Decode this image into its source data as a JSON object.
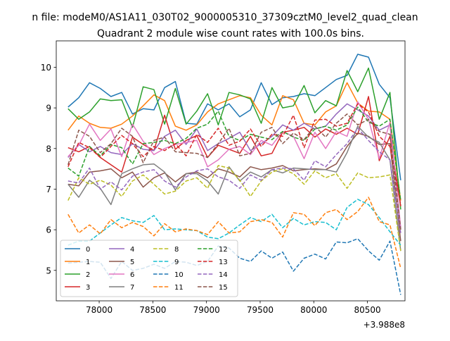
{
  "suptitle": "n file: modeM0/AS1A11_030T02_9000005310_37309cztM0_level2_quad_clean",
  "chart_data": {
    "type": "line",
    "title": "Quadrant 2 module wise count rates with 100.0s bins.",
    "xlabel": "",
    "ylabel": "",
    "offset_text": "+3.988e8",
    "x_offset": 398800000,
    "xlim": [
      77600,
      80850
    ],
    "ylim": [
      4.25,
      10.65
    ],
    "xticks": [
      78000,
      78500,
      79000,
      79500,
      80000,
      80500
    ],
    "yticks": [
      5,
      6,
      7,
      8,
      9,
      10
    ],
    "grid": false,
    "legend_position": "lower-left",
    "x": [
      77710,
      77810,
      77910,
      78010,
      78110,
      78210,
      78310,
      78410,
      78510,
      78610,
      78710,
      78810,
      78910,
      79010,
      79110,
      79210,
      79310,
      79410,
      79510,
      79610,
      79710,
      79810,
      79910,
      80010,
      80110,
      80210,
      80310,
      80410,
      80510,
      80610,
      80710,
      80810
    ],
    "series": [
      {
        "name": "0",
        "color": "#1f77b4",
        "dash": "solid",
        "values": [
          9.02,
          9.25,
          9.62,
          9.48,
          9.28,
          9.38,
          8.85,
          8.98,
          8.95,
          9.5,
          9.65,
          8.62,
          8.6,
          9.1,
          8.95,
          9.1,
          8.78,
          8.95,
          9.62,
          9.08,
          9.25,
          9.28,
          9.35,
          9.3,
          9.5,
          9.7,
          9.8,
          10.32,
          10.25,
          9.58,
          9.25,
          7.22
        ]
      },
      {
        "name": "1",
        "color": "#ff7f0e",
        "dash": "solid",
        "values": [
          8.45,
          8.8,
          8.62,
          8.52,
          8.5,
          8.6,
          8.8,
          9.05,
          9.32,
          9.18,
          8.55,
          8.45,
          8.58,
          8.9,
          9.1,
          9.2,
          9.3,
          9.25,
          8.82,
          8.58,
          9.3,
          9.2,
          8.62,
          8.58,
          8.9,
          9.05,
          9.62,
          9.12,
          8.92,
          8.9,
          8.72,
          6.72
        ]
      },
      {
        "name": "2",
        "color": "#2ca02c",
        "dash": "solid",
        "values": [
          8.98,
          8.72,
          8.9,
          9.22,
          9.18,
          9.2,
          8.52,
          9.52,
          9.45,
          8.6,
          9.48,
          8.6,
          8.92,
          9.35,
          8.58,
          9.38,
          9.32,
          9.22,
          8.62,
          9.5,
          9.0,
          9.05,
          9.55,
          8.88,
          9.18,
          9.05,
          9.92,
          9.4,
          9.98,
          8.72,
          9.38,
          6.5
        ]
      },
      {
        "name": "3",
        "color": "#d62728",
        "dash": "solid",
        "values": [
          8.02,
          7.92,
          8.05,
          7.78,
          7.6,
          7.42,
          8.28,
          8.1,
          7.95,
          8.82,
          7.98,
          8.2,
          8.32,
          7.78,
          8.08,
          7.98,
          7.88,
          8.3,
          7.82,
          7.88,
          8.4,
          8.45,
          8.52,
          8.28,
          8.48,
          8.35,
          8.5,
          8.35,
          9.28,
          7.7,
          8.3,
          6.58
        ]
      },
      {
        "name": "4",
        "color": "#9467bd",
        "dash": "solid",
        "values": [
          7.78,
          8.1,
          7.92,
          8.05,
          7.9,
          7.85,
          8.12,
          7.98,
          7.95,
          8.3,
          8.45,
          8.1,
          8.48,
          7.95,
          8.12,
          8.25,
          8.4,
          7.95,
          8.12,
          8.3,
          8.58,
          8.45,
          8.62,
          8.48,
          8.55,
          8.85,
          9.1,
          8.95,
          8.8,
          8.45,
          8.58,
          6.02
        ]
      },
      {
        "name": "5",
        "color": "#8c564b",
        "dash": "solid",
        "values": [
          7.12,
          7.08,
          7.42,
          7.45,
          7.5,
          7.28,
          7.42,
          7.05,
          7.28,
          7.4,
          7.18,
          7.38,
          7.42,
          7.28,
          7.5,
          7.42,
          7.3,
          7.55,
          7.48,
          7.52,
          7.58,
          7.45,
          7.48,
          7.5,
          7.48,
          7.62,
          8.05,
          8.38,
          8.3,
          8.1,
          8.12,
          5.72
        ]
      },
      {
        "name": "6",
        "color": "#e377c2",
        "dash": "solid",
        "values": [
          7.8,
          8.08,
          8.6,
          8.2,
          8.48,
          7.8,
          8.6,
          8.18,
          7.85,
          8.0,
          8.1,
          8.15,
          8.2,
          7.55,
          7.72,
          7.98,
          8.05,
          7.85,
          8.2,
          8.08,
          8.42,
          8.3,
          7.75,
          8.4,
          8.0,
          8.42,
          8.3,
          9.15,
          8.72,
          7.75,
          8.65,
          6.05
        ]
      },
      {
        "name": "7",
        "color": "#7f7f7f",
        "dash": "solid",
        "values": [
          7.12,
          6.8,
          7.22,
          7.02,
          6.62,
          7.38,
          7.5,
          7.6,
          7.62,
          7.42,
          6.98,
          7.38,
          7.38,
          7.2,
          6.88,
          7.55,
          7.2,
          7.42,
          7.3,
          7.48,
          7.4,
          7.52,
          7.5,
          7.48,
          7.48,
          7.42,
          7.9,
          8.55,
          8.28,
          8.15,
          7.72,
          5.48
        ]
      },
      {
        "name": "8",
        "color": "#bcbd22",
        "dash": "dashed",
        "values": [
          6.72,
          7.28,
          7.12,
          7.22,
          7.1,
          6.82,
          7.2,
          7.35,
          7.12,
          6.88,
          6.95,
          7.2,
          7.28,
          7.02,
          7.58,
          7.52,
          7.22,
          6.82,
          7.2,
          7.42,
          7.5,
          7.38,
          7.12,
          7.45,
          7.28,
          7.38,
          7.02,
          7.4,
          7.28,
          7.3,
          7.35,
          5.48
        ]
      },
      {
        "name": "9",
        "color": "#17becf",
        "dash": "dashed",
        "values": [
          5.62,
          5.72,
          5.72,
          5.92,
          6.12,
          6.3,
          6.22,
          6.18,
          6.35,
          6.0,
          6.02,
          6.0,
          5.98,
          5.82,
          5.78,
          5.92,
          6.12,
          6.3,
          6.2,
          6.38,
          6.05,
          6.28,
          6.12,
          6.2,
          6.18,
          6.0,
          6.55,
          6.75,
          6.62,
          6.3,
          5.95,
          5.62
        ]
      },
      {
        "name": "10",
        "color": "#1f77b4",
        "dash": "dashed",
        "values": [
          5.18,
          5.2,
          5.22,
          5.2,
          4.8,
          5.22,
          5.0,
          5.05,
          5.15,
          5.05,
          5.22,
          5.2,
          5.12,
          5.22,
          5.6,
          5.55,
          5.3,
          5.22,
          5.48,
          5.3,
          5.45,
          4.98,
          5.3,
          5.4,
          5.28,
          5.7,
          5.68,
          5.78,
          5.48,
          5.25,
          5.72,
          4.4
        ]
      },
      {
        "name": "11",
        "color": "#ff7f0e",
        "dash": "dashed",
        "values": [
          6.38,
          5.92,
          6.12,
          5.9,
          6.25,
          6.05,
          6.18,
          6.08,
          5.85,
          6.15,
          5.95,
          6.02,
          5.98,
          5.88,
          6.2,
          5.92,
          5.95,
          6.2,
          6.25,
          6.18,
          5.82,
          6.42,
          6.38,
          6.1,
          6.42,
          6.5,
          6.25,
          6.45,
          6.8,
          6.2,
          6.12,
          5.05
        ]
      },
      {
        "name": "12",
        "color": "#2ca02c",
        "dash": "dashed",
        "values": [
          7.52,
          7.32,
          8.05,
          7.82,
          8.1,
          8.02,
          7.62,
          8.12,
          8.15,
          8.2,
          8.12,
          8.25,
          8.5,
          8.6,
          8.92,
          8.3,
          8.2,
          8.35,
          8.28,
          8.22,
          8.42,
          8.28,
          8.2,
          8.48,
          8.55,
          8.45,
          8.58,
          9.02,
          8.65,
          8.55,
          8.72,
          6.72
        ]
      },
      {
        "name": "13",
        "color": "#d62728",
        "dash": "dashed",
        "values": [
          7.55,
          8.15,
          8.02,
          7.78,
          8.05,
          8.32,
          8.12,
          7.8,
          8.05,
          7.95,
          8.12,
          7.82,
          8.35,
          8.15,
          8.5,
          8.08,
          8.18,
          8.48,
          8.05,
          8.35,
          8.3,
          8.82,
          8.02,
          8.7,
          8.72,
          8.55,
          8.62,
          9.1,
          8.9,
          8.3,
          8.05,
          6.6
        ]
      },
      {
        "name": "14",
        "color": "#9467bd",
        "dash": "dashed",
        "values": [
          7.2,
          7.15,
          7.52,
          7.0,
          7.18,
          6.98,
          7.32,
          7.42,
          7.48,
          7.2,
          7.05,
          7.3,
          7.45,
          7.5,
          7.3,
          7.22,
          7.02,
          7.35,
          7.22,
          7.48,
          7.52,
          7.5,
          7.22,
          7.7,
          7.55,
          7.85,
          8.12,
          8.5,
          8.2,
          7.92,
          7.72,
          5.92
        ]
      },
      {
        "name": "15",
        "color": "#8c564b",
        "dash": "dashed",
        "values": [
          7.6,
          8.45,
          8.3,
          7.9,
          8.12,
          8.5,
          8.3,
          7.65,
          8.2,
          8.28,
          7.92,
          7.9,
          7.88,
          7.78,
          8.12,
          8.5,
          7.82,
          7.88,
          8.4,
          8.52,
          8.12,
          8.38,
          8.22,
          8.55,
          8.28,
          8.62,
          8.85,
          8.58,
          8.72,
          8.42,
          8.35,
          6.0
        ]
      }
    ]
  }
}
